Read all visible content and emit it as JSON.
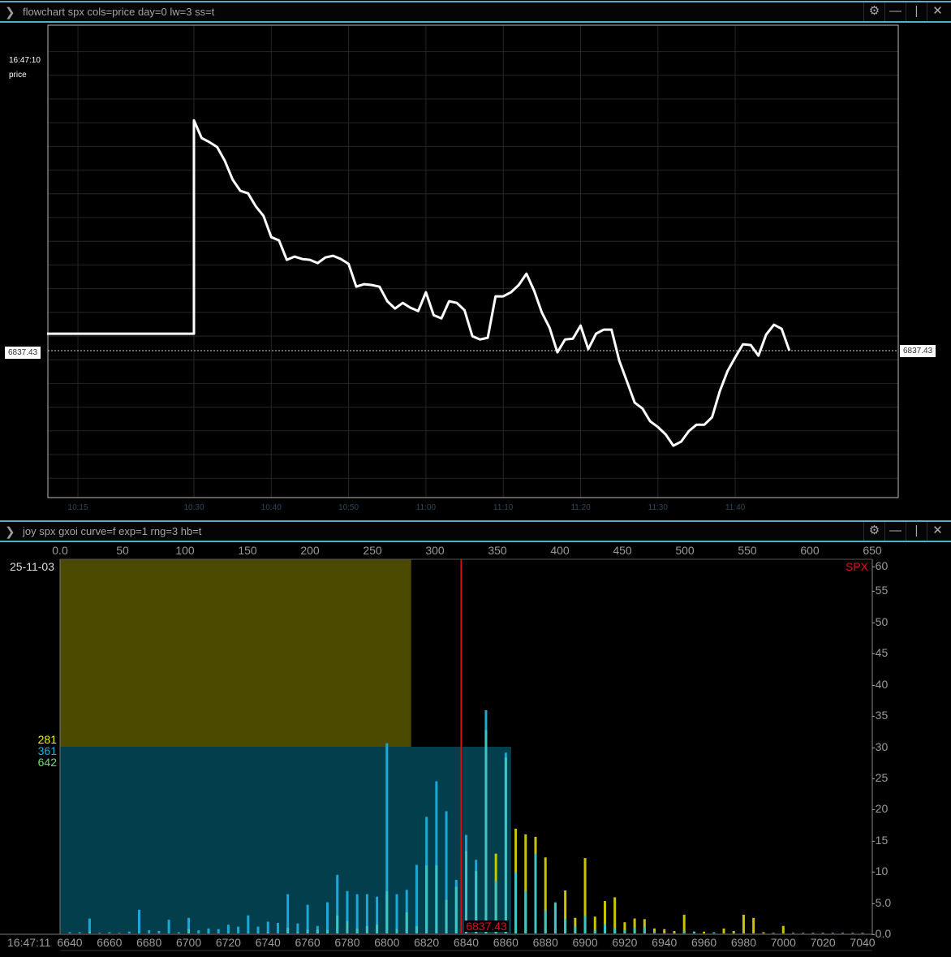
{
  "top_panel": {
    "title": "flowchart spx cols=price day=0 lw=3 ss=t",
    "timestamp": "16:47:10",
    "series_label": "price",
    "last_price": "6837.43",
    "icons": [
      "chevron-right-icon",
      "gear-icon",
      "minimize-icon",
      "split-icon",
      "close-icon"
    ]
  },
  "bottom_panel": {
    "title": "joy spx gxoi curve=f exp=1 rng=3 hb=t",
    "date": "25-11-03",
    "timestamp": "16:47:11",
    "symbol_label": "SPX",
    "spot_label": "6837.43",
    "totals": {
      "yellow": "281",
      "cyan": "361",
      "green": "642"
    }
  },
  "chart_data": [
    {
      "type": "line",
      "series_label": "price",
      "x_ticks": [
        "10:15",
        "10:30",
        "10:40",
        "10:50",
        "11:00",
        "11:10",
        "11:20",
        "11:30",
        "11:40"
      ],
      "xlim": [
        "10:11",
        "12:01"
      ],
      "grid": true,
      "reference_line": 6837.43,
      "color": "#ffffff",
      "points": [
        [
          "10:11",
          6841.6
        ],
        [
          "10:30",
          6841.6
        ],
        [
          "10:30",
          6894.2
        ],
        [
          "10:31",
          6889.8
        ],
        [
          "10:32",
          6888.8
        ],
        [
          "10:33",
          6887.6
        ],
        [
          "10:34",
          6884.2
        ],
        [
          "10:35",
          6879.6
        ],
        [
          "10:36",
          6876.8
        ],
        [
          "10:37",
          6876.2
        ],
        [
          "10:38",
          6873.0
        ],
        [
          "10:39",
          6870.6
        ],
        [
          "10:40",
          6865.4
        ],
        [
          "10:41",
          6864.6
        ],
        [
          "10:42",
          6859.8
        ],
        [
          "10:43",
          6860.6
        ],
        [
          "10:44",
          6860.0
        ],
        [
          "10:45",
          6859.8
        ],
        [
          "10:46",
          6859.0
        ],
        [
          "10:47",
          6860.4
        ],
        [
          "10:48",
          6860.8
        ],
        [
          "10:49",
          6860.0
        ],
        [
          "10:50",
          6858.8
        ],
        [
          "10:51",
          6853.2
        ],
        [
          "10:52",
          6853.8
        ],
        [
          "10:53",
          6853.6
        ],
        [
          "10:54",
          6853.2
        ],
        [
          "10:55",
          6849.6
        ],
        [
          "10:56",
          6847.8
        ],
        [
          "10:57",
          6849.2
        ],
        [
          "10:58",
          6848.0
        ],
        [
          "10:59",
          6847.2
        ],
        [
          "11:00",
          6851.8
        ],
        [
          "11:01",
          6846.2
        ],
        [
          "11:02",
          6845.4
        ],
        [
          "11:03",
          6849.6
        ],
        [
          "11:04",
          6849.2
        ],
        [
          "11:05",
          6847.4
        ],
        [
          "11:06",
          6841.0
        ],
        [
          "11:07",
          6840.2
        ],
        [
          "11:08",
          6840.6
        ],
        [
          "11:09",
          6850.8
        ],
        [
          "11:10",
          6850.8
        ],
        [
          "11:11",
          6851.8
        ],
        [
          "11:12",
          6853.6
        ],
        [
          "11:13",
          6856.4
        ],
        [
          "11:14",
          6852.2
        ],
        [
          "11:15",
          6846.8
        ],
        [
          "11:16",
          6843.0
        ],
        [
          "11:17",
          6837.0
        ],
        [
          "11:18",
          6840.2
        ],
        [
          "11:19",
          6840.4
        ],
        [
          "11:20",
          6843.6
        ],
        [
          "11:21",
          6837.8
        ],
        [
          "11:22",
          6841.6
        ],
        [
          "11:23",
          6842.6
        ],
        [
          "11:24",
          6842.6
        ],
        [
          "11:25",
          6835.0
        ],
        [
          "11:26",
          6829.8
        ],
        [
          "11:27",
          6824.6
        ],
        [
          "11:28",
          6823.2
        ],
        [
          "11:29",
          6820.0
        ],
        [
          "11:30",
          6818.6
        ],
        [
          "11:31",
          6816.8
        ],
        [
          "11:32",
          6814.0
        ],
        [
          "11:33",
          6815.0
        ],
        [
          "11:34",
          6817.6
        ],
        [
          "11:35",
          6819.2
        ],
        [
          "11:36",
          6819.2
        ],
        [
          "11:37",
          6821.0
        ],
        [
          "11:38",
          6827.4
        ],
        [
          "11:39",
          6832.4
        ],
        [
          "11:40",
          6835.8
        ],
        [
          "11:41",
          6839.0
        ],
        [
          "11:42",
          6838.8
        ],
        [
          "11:43",
          6836.2
        ],
        [
          "11:44",
          6841.4
        ],
        [
          "11:45",
          6843.8
        ],
        [
          "11:46",
          6842.8
        ],
        [
          "11:47",
          6837.43
        ]
      ]
    },
    {
      "type": "bar",
      "x_ticks": [
        "6640",
        "6660",
        "6680",
        "6700",
        "6720",
        "6740",
        "6760",
        "6780",
        "6800",
        "6820",
        "6840",
        "6860",
        "6880",
        "6900",
        "6920",
        "6940",
        "6960",
        "6980",
        "7000",
        "7020",
        "7040"
      ],
      "top_ticks": [
        "0.0",
        "50",
        "100",
        "150",
        "200",
        "250",
        "300",
        "350",
        "400",
        "450",
        "500",
        "550",
        "600",
        "650"
      ],
      "y_ticks": [
        "60",
        "55",
        "50",
        "45",
        "40",
        "35",
        "30",
        "25",
        "20",
        "15",
        "10",
        "5.0",
        "0.0"
      ],
      "ylim": [
        0,
        60
      ],
      "top_xlim": [
        0,
        650
      ],
      "spot": 6837.43,
      "summary_bars": [
        {
          "value": 281,
          "color": "#4b4a00"
        },
        {
          "value": 361,
          "color": "#023e4b"
        }
      ],
      "colors": {
        "put": "#1aa8d6",
        "call": "#c9c400",
        "overlap": "#3fc4c4",
        "spot": "#e01010"
      },
      "strikes": [
        6640,
        6645,
        6650,
        6655,
        6660,
        6665,
        6670,
        6675,
        6680,
        6685,
        6690,
        6695,
        6700,
        6705,
        6710,
        6715,
        6720,
        6725,
        6730,
        6735,
        6740,
        6745,
        6750,
        6755,
        6760,
        6765,
        6770,
        6775,
        6780,
        6785,
        6790,
        6795,
        6800,
        6805,
        6810,
        6815,
        6820,
        6825,
        6830,
        6835,
        6840,
        6845,
        6850,
        6855,
        6860,
        6865,
        6870,
        6875,
        6880,
        6885,
        6890,
        6895,
        6900,
        6905,
        6910,
        6915,
        6920,
        6925,
        6930,
        6935,
        6940,
        6945,
        6950,
        6955,
        6960,
        6965,
        6970,
        6975,
        6980,
        6985,
        6990,
        6995,
        7000,
        7005,
        7010,
        7015,
        7020,
        7025,
        7030,
        7035,
        7040
      ],
      "series": [
        {
          "values": [
            0.2,
            0.2,
            2.4,
            0.1,
            0.2,
            0.1,
            0.3,
            3.8,
            0.5,
            0.4,
            2.2,
            0.2,
            2.5,
            0.5,
            0.8,
            0.7,
            1.4,
            1.1,
            2.9,
            1.1,
            1.9,
            1.7,
            6.3,
            1.6,
            4.6,
            1.2,
            5.0,
            9.4,
            6.8,
            6.3,
            6.3,
            5.9,
            30.5,
            6.3,
            7.0,
            11.0,
            18.7,
            24.4,
            19.6,
            8.6,
            15.8,
            11.8,
            35.8,
            8.4,
            29.0,
            9.8,
            6.8,
            12.8,
            3.7,
            5.0,
            2.3,
            1.1,
            2.8,
            0.6,
            1.5,
            0.9,
            0.5,
            0.9,
            1.0,
            0.3,
            0.1,
            0,
            0.4,
            0.3,
            0,
            0.2,
            0,
            0,
            0,
            0,
            0,
            0,
            0,
            0,
            0,
            0,
            0,
            0,
            0,
            0,
            0
          ]
        },
        {
          "values": [
            0,
            0,
            0.3,
            0,
            0,
            0,
            0,
            0.1,
            0,
            0,
            0,
            0,
            0.7,
            0,
            0.1,
            0,
            0.1,
            0,
            0.1,
            0.1,
            0.2,
            0,
            0.9,
            0.2,
            0.6,
            0.6,
            0.6,
            2.9,
            2.0,
            0.8,
            1.2,
            1.4,
            6.8,
            0.7,
            3.4,
            1.2,
            10.9,
            10.9,
            5.4,
            7.5,
            13.2,
            10.0,
            32.6,
            12.8,
            28.2,
            16.8,
            15.9,
            15.5,
            12.2,
            4.9,
            6.9,
            2.5,
            12.1,
            2.7,
            5.2,
            5.8,
            1.8,
            2.4,
            2.3,
            0.8,
            0.7,
            0.4,
            3.0,
            0.3,
            0.3,
            0.1,
            0.8,
            0.4,
            3.0,
            2.5,
            0.2,
            0.1,
            1.2,
            0.1,
            0.1,
            0.1,
            0.1,
            0.1,
            0.1,
            0.1,
            0.1
          ]
        }
      ]
    }
  ]
}
